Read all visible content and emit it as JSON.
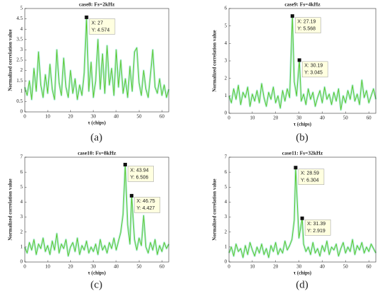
{
  "chart_data": [
    {
      "type": "line",
      "title": "case8: Fs=2kHz",
      "panel_label": "(a)",
      "x_label": "τ (chips)",
      "y_label": "Normalized correlation value",
      "xlim": [
        0,
        63
      ],
      "xticks": [
        0,
        10,
        20,
        30,
        40,
        50,
        60
      ],
      "ylim": [
        0,
        5
      ],
      "yticks": [
        0,
        0.5,
        1,
        1.5,
        2,
        2.5,
        3,
        3.5,
        4,
        4.5,
        5
      ],
      "series": [
        {
          "name": "case8",
          "color": "#5cc82a",
          "x": [
            0,
            1,
            2,
            3,
            4,
            5,
            6,
            7,
            8,
            9,
            10,
            11,
            12,
            13,
            14,
            15,
            16,
            17,
            18,
            19,
            20,
            21,
            22,
            23,
            24,
            25,
            26,
            27,
            28,
            29,
            30,
            31,
            32,
            33,
            34,
            35,
            36,
            37,
            38,
            39,
            40,
            41,
            42,
            43,
            44,
            45,
            46,
            47,
            48,
            49,
            50,
            51,
            52,
            53,
            54,
            55,
            56,
            57,
            58,
            59,
            60,
            61,
            62,
            63
          ],
          "values": [
            1.2,
            0.8,
            1.5,
            0.6,
            2.1,
            1.0,
            2.9,
            1.3,
            0.7,
            1.8,
            0.9,
            2.3,
            1.1,
            0.6,
            3.0,
            1.4,
            0.8,
            2.6,
            1.2,
            0.7,
            2.0,
            0.9,
            1.6,
            0.6,
            1.3,
            0.8,
            1.9,
            4.574,
            1.0,
            2.4,
            0.7,
            1.5,
            3.5,
            1.1,
            2.8,
            0.9,
            3.2,
            1.3,
            2.1,
            0.8,
            3.0,
            1.2,
            2.5,
            0.9,
            1.6,
            0.7,
            2.2,
            1.0,
            2.9,
            3.1,
            1.4,
            0.8,
            2.0,
            1.1,
            0.7,
            1.8,
            3.0,
            1.2,
            0.9,
            1.6,
            0.8,
            1.3,
            0.7,
            1.1
          ]
        }
      ],
      "datatips": [
        {
          "x": 27,
          "y": 4.574,
          "x_label": "X: 27",
          "y_label": "Y: 4.574"
        }
      ]
    },
    {
      "type": "line",
      "title": "case9: Fs=4kHz",
      "panel_label": "(b)",
      "x_label": "τ (chips)",
      "y_label": "Normalized correlation value",
      "xlim": [
        0,
        63
      ],
      "xticks": [
        0,
        10,
        20,
        30,
        40,
        50,
        60
      ],
      "ylim": [
        0,
        6
      ],
      "yticks": [
        0,
        1,
        2,
        3,
        4,
        5,
        6
      ],
      "series": [
        {
          "name": "case9",
          "color": "#5cc82a",
          "x": [
            0,
            1,
            2,
            3,
            4,
            5,
            6,
            7,
            8,
            9,
            10,
            11,
            12,
            13,
            14,
            15,
            16,
            17,
            18,
            19,
            20,
            21,
            22,
            23,
            24,
            25,
            26,
            27.19,
            28,
            29,
            30.19,
            31,
            32,
            33,
            34,
            35,
            36,
            37,
            38,
            39,
            40,
            41,
            42,
            43,
            44,
            45,
            46,
            47,
            48,
            49,
            50,
            51,
            52,
            53,
            54,
            55,
            56,
            57,
            58,
            59,
            60,
            61,
            62,
            63
          ],
          "values": [
            1.0,
            0.6,
            1.4,
            0.8,
            1.6,
            0.5,
            1.2,
            0.9,
            1.5,
            0.4,
            1.1,
            0.7,
            1.3,
            0.6,
            1.7,
            0.9,
            0.4,
            1.2,
            0.8,
            1.5,
            0.6,
            1.0,
            0.3,
            1.3,
            0.7,
            1.4,
            0.9,
            5.568,
            1.8,
            1.0,
            3.045,
            0.7,
            1.1,
            0.5,
            1.4,
            0.8,
            1.2,
            0.4,
            0.9,
            1.3,
            0.6,
            1.5,
            0.8,
            1.1,
            0.5,
            1.2,
            0.7,
            1.4,
            0.2,
            1.0,
            0.6,
            1.3,
            0.8,
            1.6,
            0.7,
            1.1,
            0.5,
            1.9,
            0.9,
            1.3,
            0.6,
            1.0,
            1.4,
            0.8
          ]
        }
      ],
      "datatips": [
        {
          "x": 27.19,
          "y": 5.568,
          "x_label": "X: 27.19",
          "y_label": "Y: 5.568"
        },
        {
          "x": 30.19,
          "y": 3.045,
          "x_label": "X: 30.19",
          "y_label": "Y: 3.045"
        }
      ]
    },
    {
      "type": "line",
      "title": "case10: Fs=8kHz",
      "panel_label": "(c)",
      "x_label": "τ (chips)",
      "y_label": "Normalized correlation value",
      "xlim": [
        0,
        63
      ],
      "xticks": [
        0,
        10,
        20,
        30,
        40,
        50,
        60
      ],
      "ylim": [
        0,
        7
      ],
      "yticks": [
        0,
        1,
        2,
        3,
        4,
        5,
        6,
        7
      ],
      "series": [
        {
          "name": "case10",
          "color": "#5cc82a",
          "x": [
            0,
            1,
            2,
            3,
            4,
            5,
            6,
            7,
            8,
            9,
            10,
            11,
            12,
            13,
            14,
            15,
            16,
            17,
            18,
            19,
            20,
            21,
            22,
            23,
            24,
            25,
            26,
            27,
            28,
            29,
            30,
            31,
            32,
            33,
            34,
            35,
            36,
            37,
            38,
            39,
            40,
            41,
            42,
            43,
            43.94,
            45,
            46,
            46.75,
            48,
            49,
            50,
            51,
            52,
            53,
            54,
            55,
            56,
            57,
            58,
            59,
            60,
            61,
            62,
            63
          ],
          "values": [
            1.0,
            0.6,
            1.3,
            0.8,
            1.5,
            0.5,
            1.2,
            0.9,
            1.6,
            0.7,
            1.1,
            0.5,
            1.4,
            0.8,
            1.9,
            0.6,
            1.2,
            0.9,
            1.5,
            0.4,
            1.0,
            1.3,
            0.7,
            1.6,
            0.5,
            1.1,
            0.8,
            1.4,
            0.6,
            1.0,
            0.7,
            1.2,
            0.5,
            1.5,
            0.8,
            1.1,
            0.6,
            1.3,
            0.9,
            1.6,
            0.8,
            1.4,
            2.0,
            3.2,
            6.506,
            2.5,
            1.2,
            4.427,
            1.5,
            0.8,
            1.6,
            1.1,
            3.1,
            1.0,
            0.6,
            1.3,
            0.8,
            1.5,
            0.5,
            1.1,
            0.7,
            1.3,
            0.9,
            1.2
          ]
        }
      ],
      "datatips": [
        {
          "x": 43.94,
          "y": 6.506,
          "x_label": "X: 43.94",
          "y_label": "Y: 6.506"
        },
        {
          "x": 46.75,
          "y": 4.427,
          "x_label": "X: 46.75",
          "y_label": "Y: 4.427"
        }
      ]
    },
    {
      "type": "line",
      "title": "case11: Fs=32kHz",
      "panel_label": "(d)",
      "x_label": "τ (chips)",
      "y_label": "Normalized correlation value",
      "xlim": [
        0,
        63
      ],
      "xticks": [
        0,
        10,
        20,
        30,
        40,
        50,
        60
      ],
      "ylim": [
        0,
        7
      ],
      "yticks": [
        0,
        1,
        2,
        3,
        4,
        5,
        6,
        7
      ],
      "series": [
        {
          "name": "case11",
          "color": "#5cc82a",
          "x": [
            0,
            1,
            2,
            3,
            4,
            5,
            6,
            7,
            8,
            9,
            10,
            11,
            12,
            13,
            14,
            15,
            16,
            17,
            18,
            19,
            20,
            21,
            22,
            23,
            24,
            25,
            26,
            27,
            28,
            28.59,
            30,
            31.39,
            32,
            33,
            34,
            35,
            36,
            37,
            38,
            39,
            40,
            41,
            42,
            43,
            44,
            45,
            46,
            47,
            48,
            49,
            50,
            51,
            52,
            53,
            54,
            55,
            56,
            57,
            58,
            59,
            60,
            61,
            62,
            63
          ],
          "values": [
            0.6,
            1.0,
            0.4,
            1.2,
            0.7,
            0.9,
            0.3,
            1.1,
            0.5,
            1.3,
            0.8,
            0.4,
            1.0,
            0.6,
            1.2,
            0.5,
            0.9,
            0.3,
            1.1,
            0.7,
            1.3,
            0.5,
            0.9,
            0.6,
            1.4,
            0.8,
            1.1,
            1.5,
            2.8,
            6.304,
            1.6,
            2.919,
            1.2,
            0.7,
            1.0,
            0.5,
            1.3,
            0.6,
            0.9,
            0.4,
            1.1,
            0.7,
            1.4,
            0.5,
            1.0,
            0.8,
            1.2,
            0.4,
            0.9,
            1.3,
            0.6,
            1.0,
            0.7,
            1.5,
            0.5,
            1.1,
            0.8,
            1.3,
            0.6,
            1.0,
            0.7,
            1.2,
            0.9,
            0.6
          ]
        }
      ],
      "datatips": [
        {
          "x": 28.59,
          "y": 6.304,
          "x_label": "X: 28.59",
          "y_label": "Y: 6.304"
        },
        {
          "x": 31.39,
          "y": 2.919,
          "x_label": "X: 31.39",
          "y_label": "Y: 2.919"
        }
      ]
    }
  ]
}
